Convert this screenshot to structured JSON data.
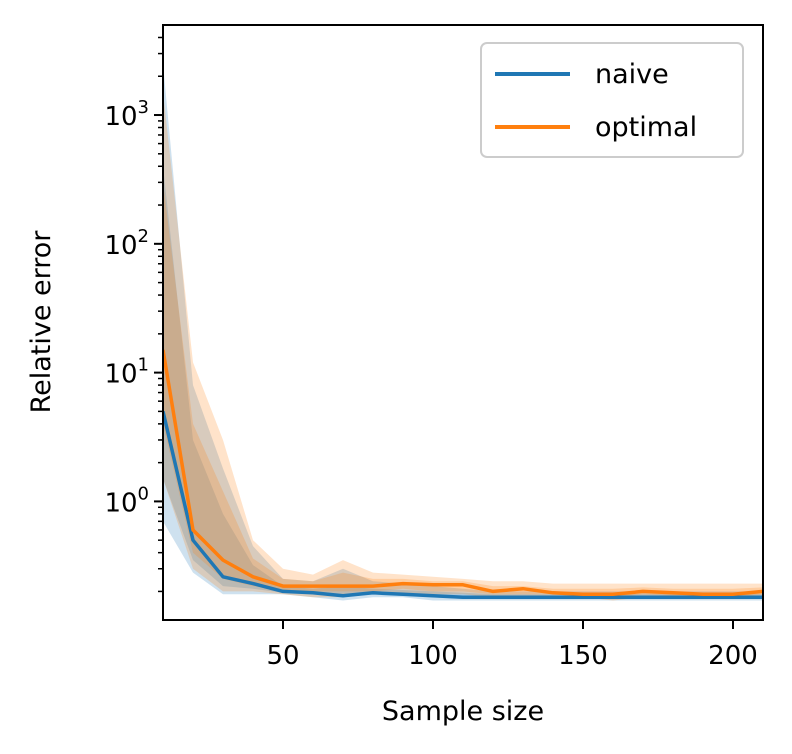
{
  "chart_data": {
    "type": "line",
    "title": "",
    "xlabel": "Sample size",
    "ylabel": "Relative error",
    "xlim": [
      10,
      210
    ],
    "ylim": [
      0.12,
      5000
    ],
    "yscale": "log",
    "grid": false,
    "legend_position": "top-right",
    "x_ticks": [
      50,
      100,
      150,
      200
    ],
    "y_ticks": [
      {
        "value": 1,
        "base": "10",
        "exp": "0"
      },
      {
        "value": 10,
        "base": "10",
        "exp": "1"
      },
      {
        "value": 100,
        "base": "10",
        "exp": "2"
      },
      {
        "value": 1000,
        "base": "10",
        "exp": "3"
      }
    ],
    "x": [
      10,
      20,
      30,
      40,
      50,
      60,
      70,
      80,
      90,
      100,
      110,
      120,
      130,
      140,
      150,
      160,
      170,
      180,
      190,
      200,
      210
    ],
    "series": [
      {
        "name": "naive",
        "color": "#1f77b4",
        "values": [
          5.0,
          0.5,
          0.26,
          0.23,
          0.2,
          0.195,
          0.185,
          0.195,
          0.19,
          0.185,
          0.18,
          0.18,
          0.18,
          0.18,
          0.18,
          0.18,
          0.18,
          0.18,
          0.18,
          0.18,
          0.18
        ],
        "band_outer_low": [
          0.7,
          0.28,
          0.19,
          0.19,
          0.19,
          0.18,
          0.17,
          0.18,
          0.18,
          0.17,
          0.17,
          0.17,
          0.17,
          0.17,
          0.17,
          0.17,
          0.17,
          0.17,
          0.17,
          0.17,
          0.17
        ],
        "band_outer_high": [
          2500,
          8.0,
          1.8,
          0.45,
          0.25,
          0.24,
          0.3,
          0.24,
          0.23,
          0.22,
          0.21,
          0.2,
          0.2,
          0.2,
          0.2,
          0.2,
          0.2,
          0.2,
          0.2,
          0.2,
          0.2
        ],
        "band_inner_low": [
          1.5,
          0.35,
          0.22,
          0.21,
          0.195,
          0.19,
          0.18,
          0.19,
          0.185,
          0.18,
          0.175,
          0.175,
          0.175,
          0.175,
          0.175,
          0.175,
          0.175,
          0.175,
          0.175,
          0.175,
          0.175
        ],
        "band_inner_high": [
          400,
          3.0,
          0.8,
          0.32,
          0.22,
          0.21,
          0.22,
          0.21,
          0.205,
          0.2,
          0.195,
          0.19,
          0.19,
          0.19,
          0.19,
          0.19,
          0.19,
          0.19,
          0.19,
          0.19,
          0.19
        ]
      },
      {
        "name": "optimal",
        "color": "#ff7f0e",
        "values": [
          15,
          0.6,
          0.35,
          0.26,
          0.22,
          0.22,
          0.22,
          0.22,
          0.23,
          0.225,
          0.225,
          0.2,
          0.21,
          0.195,
          0.19,
          0.19,
          0.2,
          0.195,
          0.19,
          0.19,
          0.2
        ],
        "band_outer_low": [
          1.5,
          0.3,
          0.2,
          0.2,
          0.19,
          0.18,
          0.18,
          0.19,
          0.19,
          0.19,
          0.19,
          0.18,
          0.18,
          0.18,
          0.18,
          0.17,
          0.18,
          0.18,
          0.18,
          0.18,
          0.18
        ],
        "band_outer_high": [
          1500,
          12,
          3.0,
          0.5,
          0.3,
          0.27,
          0.35,
          0.28,
          0.27,
          0.26,
          0.25,
          0.24,
          0.24,
          0.23,
          0.23,
          0.23,
          0.23,
          0.23,
          0.23,
          0.23,
          0.23
        ],
        "band_inner_low": [
          4,
          0.4,
          0.25,
          0.22,
          0.2,
          0.2,
          0.2,
          0.2,
          0.21,
          0.2,
          0.2,
          0.19,
          0.19,
          0.19,
          0.18,
          0.18,
          0.19,
          0.185,
          0.18,
          0.18,
          0.19
        ],
        "band_inner_high": [
          300,
          4.0,
          1.2,
          0.36,
          0.25,
          0.24,
          0.28,
          0.25,
          0.25,
          0.24,
          0.24,
          0.22,
          0.22,
          0.21,
          0.21,
          0.21,
          0.215,
          0.21,
          0.21,
          0.21,
          0.215
        ]
      }
    ]
  }
}
